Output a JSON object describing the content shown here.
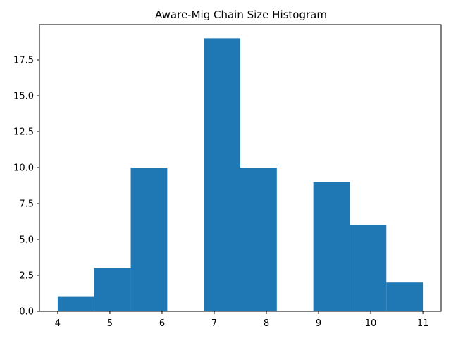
{
  "chart_data": {
    "type": "bar",
    "title": "Aware-Mig Chain Size Histogram",
    "xlabel": "",
    "ylabel": "",
    "bins": [
      {
        "x0": 4.0,
        "x1": 4.7,
        "count": 1
      },
      {
        "x0": 4.7,
        "x1": 5.4,
        "count": 3
      },
      {
        "x0": 5.4,
        "x1": 6.1,
        "count": 10
      },
      {
        "x0": 6.1,
        "x1": 6.8,
        "count": 0
      },
      {
        "x0": 6.8,
        "x1": 7.5,
        "count": 19
      },
      {
        "x0": 7.5,
        "x1": 8.2,
        "count": 10
      },
      {
        "x0": 8.2,
        "x1": 8.9,
        "count": 0
      },
      {
        "x0": 8.9,
        "x1": 9.6,
        "count": 9
      },
      {
        "x0": 9.6,
        "x1": 10.3,
        "count": 6
      },
      {
        "x0": 10.3,
        "x1": 11.0,
        "count": 2
      }
    ],
    "xlim": [
      3.65,
      11.35
    ],
    "ylim": [
      0,
      19.95
    ],
    "xticks": [
      4,
      5,
      6,
      7,
      8,
      9,
      10,
      11
    ],
    "yticks": [
      0.0,
      2.5,
      5.0,
      7.5,
      10.0,
      12.5,
      15.0,
      17.5
    ],
    "ytick_labels": [
      "0.0",
      "2.5",
      "5.0",
      "7.5",
      "10.0",
      "12.5",
      "15.0",
      "17.5"
    ],
    "bar_color": "#1f77b4",
    "grid": false,
    "legend": "none"
  }
}
